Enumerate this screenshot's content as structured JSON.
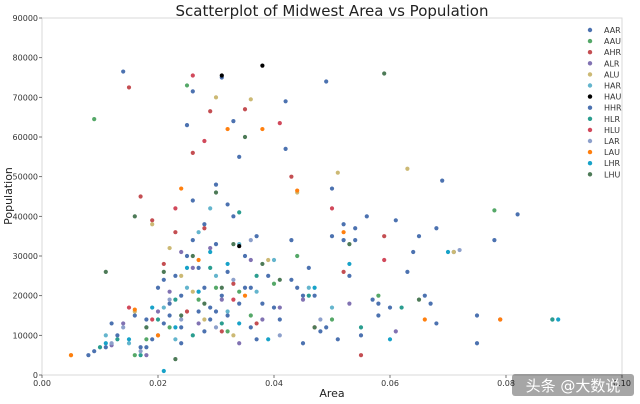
{
  "chart_data": {
    "type": "scatter",
    "title": "Scatterplot of Midwest Area vs Population",
    "xlabel": "Area",
    "ylabel": "Population",
    "xlim": [
      0.0,
      0.1
    ],
    "ylim": [
      0,
      90000
    ],
    "x_ticks": [
      "0.00",
      "0.02",
      "0.04",
      "0.06",
      "0.08",
      "0.10"
    ],
    "y_ticks": [
      "0",
      "10000",
      "20000",
      "30000",
      "40000",
      "50000",
      "60000",
      "70000",
      "80000",
      "90000"
    ],
    "legend_position": "top-right",
    "grid": false,
    "series": [
      {
        "name": "AAR",
        "color": "#4c72b0",
        "points": [
          [
            0.009,
            6000
          ],
          [
            0.011,
            7000
          ],
          [
            0.012,
            13000
          ],
          [
            0.014,
            76500
          ],
          [
            0.016,
            15000
          ],
          [
            0.017,
            7000
          ],
          [
            0.018,
            14000
          ],
          [
            0.019,
            9000
          ],
          [
            0.02,
            22000
          ],
          [
            0.021,
            13000
          ],
          [
            0.022,
            18000
          ],
          [
            0.023,
            25000
          ],
          [
            0.024,
            20000
          ],
          [
            0.024,
            12000
          ],
          [
            0.025,
            63000
          ],
          [
            0.025,
            30000
          ],
          [
            0.026,
            71500
          ],
          [
            0.026,
            44000
          ],
          [
            0.027,
            16000
          ],
          [
            0.027,
            27000
          ],
          [
            0.028,
            22000
          ],
          [
            0.028,
            38000
          ],
          [
            0.029,
            14000
          ],
          [
            0.029,
            17000
          ],
          [
            0.03,
            33000
          ],
          [
            0.03,
            48000
          ],
          [
            0.031,
            75000
          ],
          [
            0.031,
            20000
          ],
          [
            0.032,
            26000
          ],
          [
            0.032,
            15000
          ],
          [
            0.033,
            40000
          ],
          [
            0.034,
            18000
          ],
          [
            0.034,
            55000
          ],
          [
            0.035,
            30000
          ],
          [
            0.036,
            12000
          ],
          [
            0.036,
            22000
          ],
          [
            0.037,
            35000
          ],
          [
            0.038,
            18000
          ],
          [
            0.039,
            25000
          ],
          [
            0.041,
            14000
          ],
          [
            0.042,
            69000
          ],
          [
            0.043,
            24000
          ],
          [
            0.043,
            34000
          ],
          [
            0.044,
            22000
          ],
          [
            0.045,
            20000
          ],
          [
            0.046,
            27000
          ],
          [
            0.047,
            20000
          ],
          [
            0.048,
            11000
          ],
          [
            0.049,
            12000
          ],
          [
            0.05,
            47000
          ],
          [
            0.05,
            35000
          ],
          [
            0.051,
            9000
          ],
          [
            0.052,
            38000
          ],
          [
            0.053,
            25000
          ],
          [
            0.054,
            37000
          ],
          [
            0.055,
            10000
          ],
          [
            0.056,
            40000
          ],
          [
            0.057,
            19000
          ],
          [
            0.058,
            15000
          ],
          [
            0.06,
            17000
          ],
          [
            0.061,
            39000
          ],
          [
            0.063,
            26000
          ],
          [
            0.065,
            35000
          ],
          [
            0.066,
            20000
          ],
          [
            0.067,
            18000
          ],
          [
            0.068,
            13000
          ],
          [
            0.069,
            49000
          ],
          [
            0.071,
            31000
          ],
          [
            0.075,
            15000
          ],
          [
            0.078,
            34000
          ],
          [
            0.082,
            40500
          ],
          [
            0.088,
            14000
          ]
        ]
      },
      {
        "name": "AAU",
        "color": "#55a868",
        "points": [
          [
            0.009,
            64500
          ],
          [
            0.016,
            5000
          ],
          [
            0.018,
            9000
          ],
          [
            0.022,
            12000
          ],
          [
            0.025,
            73000
          ],
          [
            0.027,
            19000
          ],
          [
            0.03,
            22000
          ],
          [
            0.032,
            11000
          ],
          [
            0.034,
            21000
          ],
          [
            0.036,
            15000
          ],
          [
            0.04,
            23000
          ],
          [
            0.044,
            30000
          ],
          [
            0.05,
            14000
          ],
          [
            0.058,
            20000
          ],
          [
            0.078,
            41500
          ]
        ]
      },
      {
        "name": "AHR",
        "color": "#c44e52",
        "points": [
          [
            0.015,
            72500
          ],
          [
            0.017,
            45000
          ],
          [
            0.019,
            39000
          ],
          [
            0.021,
            28000
          ],
          [
            0.023,
            36000
          ],
          [
            0.025,
            16000
          ],
          [
            0.026,
            56000
          ],
          [
            0.028,
            37000
          ],
          [
            0.029,
            66500
          ],
          [
            0.031,
            11000
          ],
          [
            0.033,
            23000
          ],
          [
            0.035,
            67000
          ],
          [
            0.037,
            13000
          ],
          [
            0.043,
            50000
          ],
          [
            0.047,
            12000
          ],
          [
            0.052,
            26000
          ],
          [
            0.055,
            5000
          ],
          [
            0.059,
            35000
          ],
          [
            0.079,
            14000
          ]
        ]
      },
      {
        "name": "ALR",
        "color": "#8172b2",
        "points": [
          [
            0.012,
            7500
          ],
          [
            0.014,
            13000
          ],
          [
            0.018,
            5000
          ],
          [
            0.02,
            16000
          ],
          [
            0.022,
            21000
          ],
          [
            0.024,
            31000
          ],
          [
            0.026,
            27000
          ],
          [
            0.027,
            13000
          ],
          [
            0.029,
            32000
          ],
          [
            0.031,
            19000
          ],
          [
            0.034,
            8000
          ],
          [
            0.036,
            29000
          ],
          [
            0.038,
            14000
          ],
          [
            0.041,
            17000
          ],
          [
            0.045,
            19000
          ],
          [
            0.053,
            18000
          ],
          [
            0.061,
            11000
          ]
        ]
      },
      {
        "name": "ALU",
        "color": "#ccb974",
        "points": [
          [
            0.005,
            5000
          ],
          [
            0.016,
            16000
          ],
          [
            0.019,
            38000
          ],
          [
            0.022,
            32000
          ],
          [
            0.024,
            25000
          ],
          [
            0.026,
            21000
          ],
          [
            0.028,
            14000
          ],
          [
            0.03,
            70000
          ],
          [
            0.033,
            10000
          ],
          [
            0.036,
            69500
          ],
          [
            0.039,
            29000
          ],
          [
            0.044,
            46000
          ],
          [
            0.051,
            51000
          ],
          [
            0.063,
            52000
          ],
          [
            0.071,
            31000
          ]
        ]
      },
      {
        "name": "HAR",
        "color": "#64b5cd",
        "points": [
          [
            0.011,
            10000
          ],
          [
            0.015,
            8000
          ],
          [
            0.018,
            12000
          ],
          [
            0.021,
            17000
          ],
          [
            0.023,
            9000
          ],
          [
            0.025,
            22000
          ],
          [
            0.027,
            36000
          ],
          [
            0.029,
            42000
          ],
          [
            0.03,
            25000
          ],
          [
            0.032,
            16000
          ],
          [
            0.034,
            33000
          ],
          [
            0.037,
            21000
          ],
          [
            0.04,
            29000
          ],
          [
            0.046,
            22000
          ],
          [
            0.05,
            17000
          ]
        ]
      },
      {
        "name": "HAU",
        "color": "#000000",
        "points": [
          [
            0.031,
            75500
          ],
          [
            0.034,
            32500
          ],
          [
            0.038,
            78000
          ]
        ]
      },
      {
        "name": "HHR",
        "color": "#4c72b0",
        "points": [
          [
            0.008,
            5000
          ],
          [
            0.013,
            10000
          ],
          [
            0.018,
            7000
          ],
          [
            0.021,
            24000
          ],
          [
            0.022,
            15000
          ],
          [
            0.024,
            8000
          ],
          [
            0.026,
            34000
          ],
          [
            0.028,
            11000
          ],
          [
            0.03,
            16000
          ],
          [
            0.032,
            43000
          ],
          [
            0.033,
            64000
          ],
          [
            0.035,
            22000
          ],
          [
            0.037,
            9000
          ],
          [
            0.04,
            17000
          ],
          [
            0.042,
            57000
          ],
          [
            0.045,
            8000
          ],
          [
            0.049,
            74000
          ],
          [
            0.052,
            34000
          ],
          [
            0.054,
            34000
          ],
          [
            0.058,
            18000
          ],
          [
            0.064,
            31000
          ],
          [
            0.068,
            37000
          ],
          [
            0.075,
            8000
          ]
        ]
      },
      {
        "name": "HLR",
        "color": "#2a9d8f",
        "points": [
          [
            0.01,
            7000
          ],
          [
            0.013,
            9000
          ],
          [
            0.017,
            5000
          ],
          [
            0.02,
            14000
          ],
          [
            0.023,
            19000
          ],
          [
            0.026,
            10000
          ],
          [
            0.029,
            27000
          ],
          [
            0.031,
            13000
          ],
          [
            0.034,
            41000
          ],
          [
            0.037,
            25000
          ],
          [
            0.046,
            20000
          ],
          [
            0.055,
            12000
          ],
          [
            0.062,
            17000
          ],
          [
            0.088,
            14000
          ]
        ]
      },
      {
        "name": "HLU",
        "color": "#d1495b",
        "points": [
          [
            0.015,
            17000
          ],
          [
            0.019,
            14000
          ],
          [
            0.023,
            42000
          ],
          [
            0.026,
            75500
          ],
          [
            0.028,
            59000
          ],
          [
            0.033,
            19000
          ],
          [
            0.041,
            63500
          ],
          [
            0.05,
            42000
          ],
          [
            0.059,
            29000
          ]
        ]
      },
      {
        "name": "LAR",
        "color": "#8da0cb",
        "points": [
          [
            0.012,
            8000
          ],
          [
            0.014,
            12000
          ],
          [
            0.017,
            6000
          ],
          [
            0.02,
            10000
          ],
          [
            0.022,
            19000
          ],
          [
            0.024,
            14000
          ],
          [
            0.027,
            21000
          ],
          [
            0.03,
            12000
          ],
          [
            0.033,
            24000
          ],
          [
            0.036,
            34000
          ],
          [
            0.041,
            10000
          ],
          [
            0.048,
            14000
          ],
          [
            0.072,
            31500
          ]
        ]
      },
      {
        "name": "LAU",
        "color": "#ff7f0e",
        "points": [
          [
            0.005,
            5000
          ],
          [
            0.016,
            16500
          ],
          [
            0.02,
            10000
          ],
          [
            0.024,
            47000
          ],
          [
            0.027,
            29000
          ],
          [
            0.032,
            62000
          ],
          [
            0.035,
            20000
          ],
          [
            0.038,
            62000
          ],
          [
            0.044,
            46500
          ],
          [
            0.052,
            36000
          ],
          [
            0.066,
            14000
          ],
          [
            0.079,
            14000
          ]
        ]
      },
      {
        "name": "LHR",
        "color": "#17a2c8",
        "points": [
          [
            0.011,
            8000
          ],
          [
            0.015,
            9000
          ],
          [
            0.019,
            17000
          ],
          [
            0.021,
            1000
          ],
          [
            0.023,
            12000
          ],
          [
            0.025,
            27000
          ],
          [
            0.027,
            21000
          ],
          [
            0.029,
            31000
          ],
          [
            0.032,
            28000
          ],
          [
            0.034,
            13000
          ],
          [
            0.039,
            9000
          ],
          [
            0.047,
            22000
          ],
          [
            0.053,
            28000
          ],
          [
            0.06,
            9000
          ],
          [
            0.07,
            31000
          ],
          [
            0.089,
            14000
          ]
        ]
      },
      {
        "name": "LHU",
        "color": "#4d7a57",
        "points": [
          [
            0.011,
            26000
          ],
          [
            0.016,
            40000
          ],
          [
            0.018,
            12000
          ],
          [
            0.021,
            26000
          ],
          [
            0.023,
            4000
          ],
          [
            0.024,
            15000
          ],
          [
            0.026,
            30000
          ],
          [
            0.028,
            18000
          ],
          [
            0.03,
            46000
          ],
          [
            0.031,
            22000
          ],
          [
            0.033,
            33000
          ],
          [
            0.035,
            60000
          ],
          [
            0.038,
            28000
          ],
          [
            0.041,
            24000
          ],
          [
            0.047,
            12000
          ],
          [
            0.053,
            33000
          ],
          [
            0.059,
            76000
          ],
          [
            0.065,
            19000
          ]
        ]
      }
    ]
  },
  "watermark": "头条 @大数说"
}
